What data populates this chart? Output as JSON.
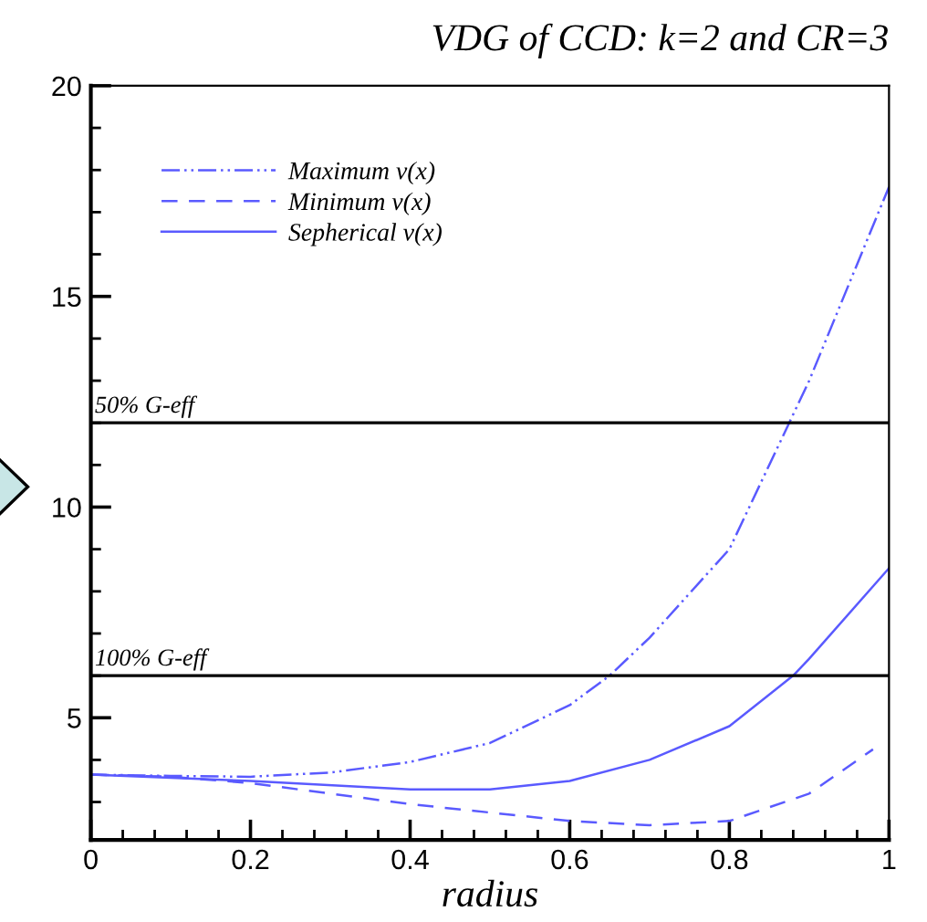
{
  "chart_data": {
    "type": "line",
    "title": "VDG of CCD: k=2 and CR=3",
    "xlabel": "radius",
    "xlim": [
      0,
      1
    ],
    "xticks": [
      {
        "value": 0,
        "label": "0"
      },
      0.2,
      0.4,
      0.6,
      0.8,
      {
        "value": 1,
        "label": "1"
      }
    ],
    "ylim": [
      2.1,
      20
    ],
    "yticks": [
      5,
      10,
      15,
      20
    ],
    "grid": false,
    "legend": "top left",
    "marker": "none",
    "series": [
      {
        "name": "Maximum v(x)",
        "color": "#5a5aff",
        "line_style": "dashdotdot",
        "x": [
          0,
          0.1,
          0.2,
          0.3,
          0.4,
          0.5,
          0.6,
          0.65,
          0.7,
          0.8,
          0.875,
          0.9,
          1.0
        ],
        "values": [
          3.65,
          3.62,
          3.6,
          3.7,
          3.95,
          4.4,
          5.3,
          6.0,
          6.9,
          9.0,
          12.0,
          13.0,
          17.6
        ]
      },
      {
        "name": "Minimum v(x)",
        "color": "#5a5aff",
        "line_style": "dashed",
        "x": [
          0,
          0.1,
          0.2,
          0.3,
          0.4,
          0.5,
          0.6,
          0.7,
          0.8,
          0.9,
          0.98
        ],
        "values": [
          3.65,
          3.6,
          3.45,
          3.2,
          2.95,
          2.75,
          2.55,
          2.45,
          2.55,
          3.2,
          4.25
        ]
      },
      {
        "name": "Sepherical v(x)",
        "color": "#5a5aff",
        "line_style": "solid",
        "x": [
          0,
          0.2,
          0.4,
          0.5,
          0.6,
          0.7,
          0.8,
          0.88,
          0.9,
          1.0
        ],
        "values": [
          3.65,
          3.5,
          3.3,
          3.3,
          3.5,
          4.0,
          4.8,
          6.0,
          6.4,
          8.55
        ]
      }
    ],
    "ref_lines": [
      {
        "axis": "y",
        "value": 12,
        "label": "50% G-eff",
        "color": "#000000"
      },
      {
        "axis": "y",
        "value": 6,
        "label": "100% G-eff",
        "color": "#000000"
      }
    ]
  }
}
